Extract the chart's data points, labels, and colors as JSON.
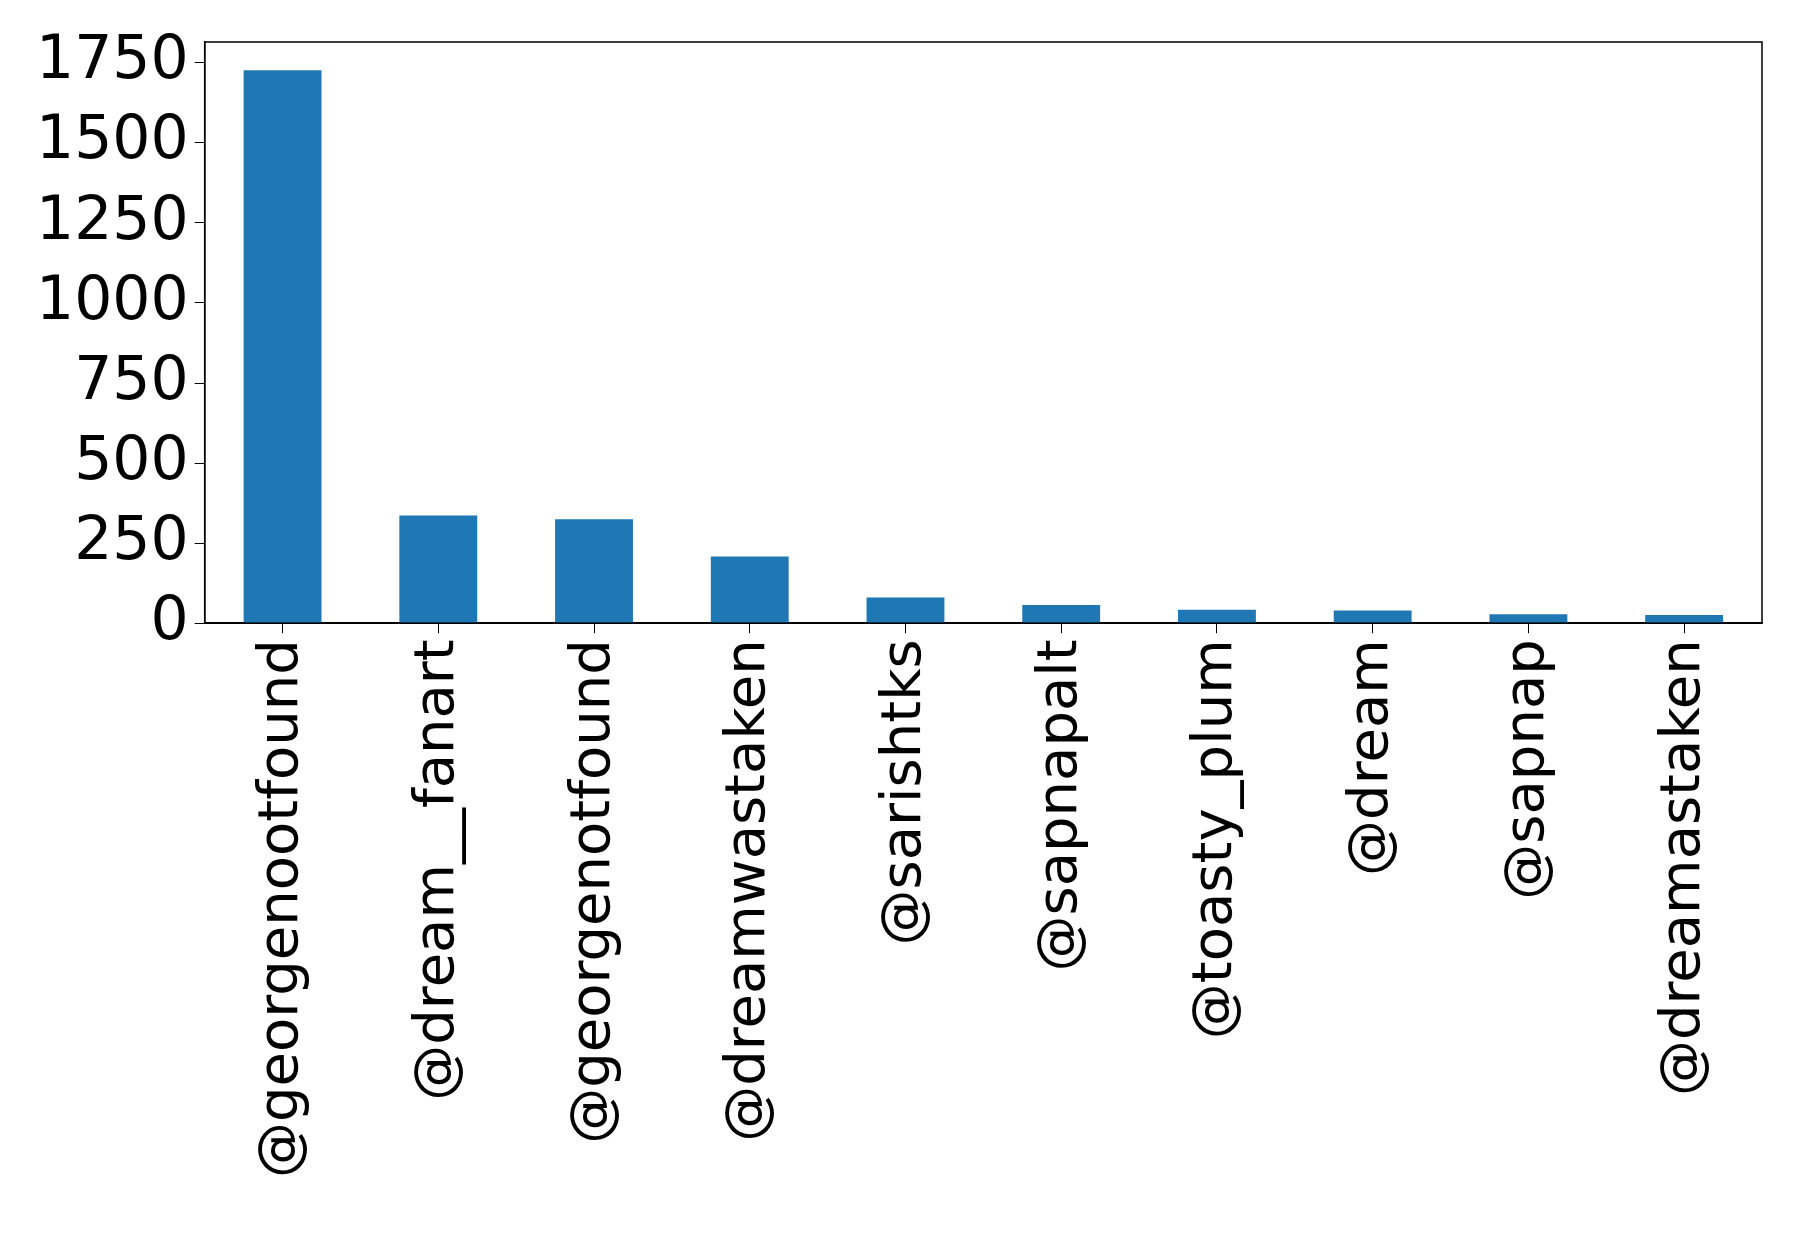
{
  "chart_data": {
    "type": "bar",
    "categories": [
      "@georgenootfound",
      "@dream__fanart",
      "@georgenotfound",
      "@dreamwastaken",
      "@sarishtks",
      "@sapnapalt",
      "@toasty_plum",
      "@dream",
      "@sapnap",
      "@dreamastaken"
    ],
    "values": [
      1727,
      336,
      325,
      208,
      80,
      57,
      42,
      40,
      28,
      26
    ],
    "color": "#1f77b4",
    "ylim": [
      0,
      1815
    ],
    "yticks": [
      0,
      250,
      500,
      750,
      1000,
      1250,
      1500,
      1750
    ],
    "grid": false,
    "legend": false
  }
}
